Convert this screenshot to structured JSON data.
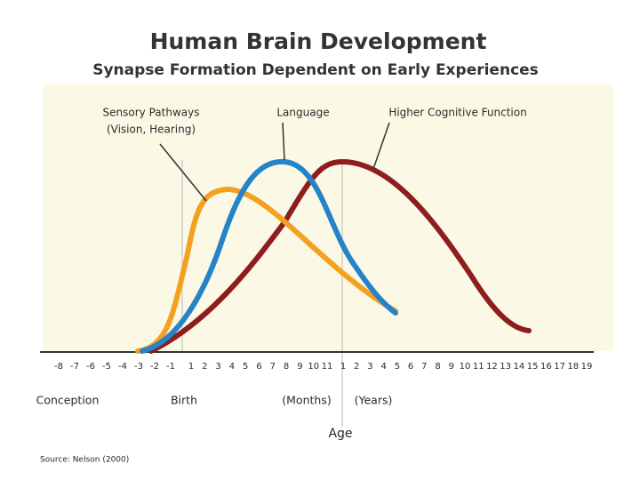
{
  "header": {
    "title": "Human Brain Development",
    "subtitle": "Synapse Formation Dependent on Early Experiences"
  },
  "curves": {
    "sensory": [
      "Sensory Pathways",
      "(Vision, Hearing)"
    ],
    "language": "Language",
    "higher": "Higher Cognitive Function"
  },
  "ticks": {
    "prenatal": [
      -8,
      -7,
      -6,
      -5,
      -4,
      -3,
      -2,
      -1
    ],
    "months": [
      1,
      2,
      3,
      4,
      5,
      6,
      7,
      8,
      9,
      10,
      11
    ],
    "years": [
      1,
      2,
      3,
      4,
      5,
      6,
      7,
      8,
      9,
      10,
      11,
      12,
      13,
      14,
      15,
      16,
      17,
      18,
      19
    ]
  },
  "axis_labels": {
    "conception": "Conception",
    "birth": "Birth",
    "months": "(Months)",
    "years": "(Years)",
    "age": "Age"
  },
  "source": "Source: Nelson (2000)"
}
